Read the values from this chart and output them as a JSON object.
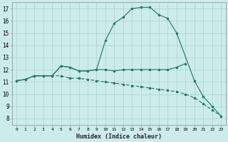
{
  "xlabel": "Humidex (Indice chaleur)",
  "xlim": [
    -0.5,
    23.5
  ],
  "ylim": [
    7.5,
    17.5
  ],
  "xticks": [
    0,
    1,
    2,
    3,
    4,
    5,
    6,
    7,
    8,
    9,
    10,
    11,
    12,
    13,
    14,
    15,
    16,
    17,
    18,
    19,
    20,
    21,
    22,
    23
  ],
  "yticks": [
    8,
    9,
    10,
    11,
    12,
    13,
    14,
    15,
    16,
    17
  ],
  "background_color": "#ccecea",
  "grid_color": "#aad8d5",
  "line_color": "#2a7a68",
  "curve_hump_x": [
    0,
    1,
    2,
    3,
    4,
    5,
    6,
    7,
    8,
    9,
    10,
    11,
    12,
    13,
    14,
    15,
    16,
    17,
    18,
    20,
    21,
    22,
    23
  ],
  "curve_hump_y": [
    11.1,
    11.2,
    11.5,
    11.5,
    11.5,
    12.3,
    12.2,
    11.9,
    11.9,
    12.0,
    14.4,
    15.8,
    16.3,
    17.0,
    17.1,
    17.1,
    16.5,
    16.2,
    15.0,
    11.1,
    9.8,
    9.0,
    8.2
  ],
  "curve_mid_x": [
    0,
    1,
    2,
    3,
    4,
    5,
    6,
    7,
    8,
    9,
    10,
    11,
    12,
    13,
    14,
    15,
    16,
    17,
    18,
    19
  ],
  "curve_mid_y": [
    11.1,
    11.2,
    11.5,
    11.5,
    11.5,
    12.3,
    12.2,
    11.9,
    11.9,
    12.0,
    12.0,
    11.9,
    12.0,
    12.0,
    12.0,
    12.0,
    12.0,
    12.0,
    12.2,
    12.5
  ],
  "curve_low_x": [
    0,
    1,
    2,
    3,
    4,
    5,
    6,
    7,
    8,
    9,
    10,
    11,
    12,
    13,
    14,
    15,
    16,
    17,
    18,
    19,
    20,
    21,
    22,
    23
  ],
  "curve_low_y": [
    11.1,
    11.2,
    11.5,
    11.5,
    11.5,
    11.5,
    11.3,
    11.3,
    11.2,
    11.1,
    11.0,
    10.9,
    10.8,
    10.7,
    10.6,
    10.5,
    10.4,
    10.3,
    10.2,
    10.0,
    9.7,
    9.2,
    8.7,
    8.2
  ]
}
